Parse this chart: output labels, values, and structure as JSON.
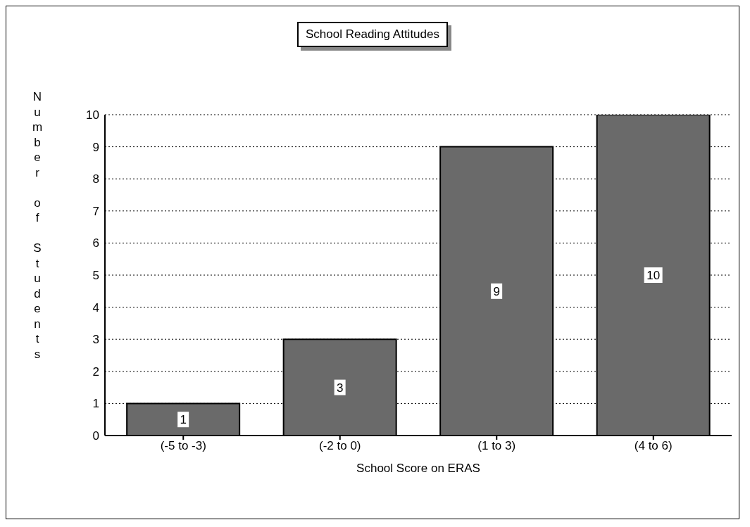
{
  "chart_data": {
    "type": "bar",
    "title": "School Reading Attitudes",
    "xlabel": "School Score on ERAS",
    "ylabel": "Number of Students",
    "categories": [
      "(-5  to  -3)",
      "(-2  to  0)",
      "(1  to  3)",
      "(4  to  6)"
    ],
    "values": [
      1,
      3,
      9,
      10
    ],
    "color": "#6a6a6a",
    "ylim": [
      0,
      10
    ],
    "yticks": [
      0,
      1,
      2,
      3,
      4,
      5,
      6,
      7,
      8,
      9,
      10
    ],
    "grid": "y",
    "data_labels": true
  }
}
